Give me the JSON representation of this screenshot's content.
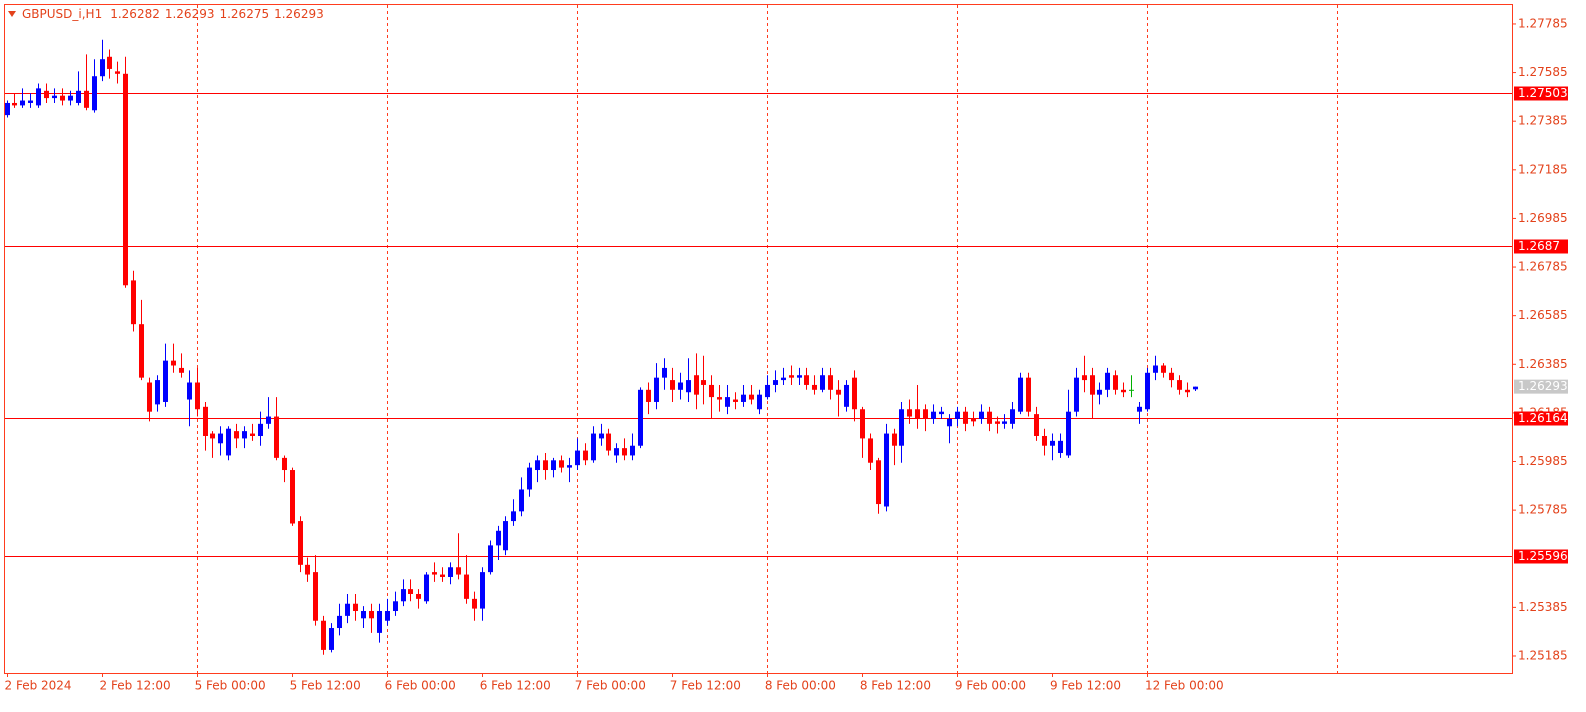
{
  "chart_data": {
    "type": "candlestick",
    "title": "GBPUSD_i,H1",
    "categories": [
      "2 Feb 2024",
      null,
      null,
      null,
      null,
      null,
      null,
      null,
      null,
      null,
      null,
      null,
      "2 Feb 12:00",
      null,
      null,
      null,
      null,
      null,
      null,
      null,
      null,
      null,
      null,
      null,
      "5 Feb 00:00",
      null,
      null,
      null,
      null,
      null,
      null,
      null,
      null,
      null,
      null,
      null,
      "5 Feb 12:00",
      null,
      null,
      null,
      null,
      null,
      null,
      null,
      null,
      null,
      null,
      null,
      "6 Feb 00:00",
      null,
      null,
      null,
      null,
      null,
      null,
      null,
      null,
      null,
      null,
      null,
      "6 Feb 12:00",
      null,
      null,
      null,
      null,
      null,
      null,
      null,
      null,
      null,
      null,
      null,
      "7 Feb 00:00",
      null,
      null,
      null,
      null,
      null,
      null,
      null,
      null,
      null,
      null,
      null,
      "7 Feb 12:00",
      null,
      null,
      null,
      null,
      null,
      null,
      null,
      null,
      null,
      null,
      null,
      "8 Feb 00:00",
      null,
      null,
      null,
      null,
      null,
      null,
      null,
      null,
      null,
      null,
      null,
      "8 Feb 12:00",
      null,
      null,
      null,
      null,
      null,
      null,
      null,
      null,
      null,
      null,
      null,
      "9 Feb 00:00",
      null,
      null,
      null,
      null,
      null,
      null,
      null,
      null,
      null,
      null,
      null,
      "9 Feb 12:00",
      null,
      null,
      null,
      null,
      null,
      null,
      null,
      null,
      null,
      null,
      null,
      "12 Feb 00:00",
      null,
      null,
      null,
      null,
      null,
      null
    ],
    "open": [
      1.2741,
      1.2746,
      1.2745,
      1.2746,
      1.2745,
      1.2751,
      1.2748,
      1.2749,
      1.2747,
      1.2746,
      1.2751,
      1.2743,
      1.2757,
      1.2765,
      1.2759,
      1.2758,
      1.2673,
      1.2655,
      1.2631,
      1.2622,
      1.2623,
      1.264,
      1.2637,
      1.2624,
      1.2631,
      1.2621,
      1.261,
      1.2606,
      1.2601,
      1.2611,
      1.2608,
      1.261,
      1.2609,
      1.2614,
      1.2617,
      1.26,
      1.2595,
      1.2574,
      1.2556,
      1.2553,
      1.2533,
      1.2521,
      1.253,
      1.2535,
      1.254,
      1.2534,
      1.2537,
      1.2528,
      1.2533,
      1.2537,
      1.2541,
      1.2546,
      1.2544,
      1.2541,
      1.2553,
      1.2552,
      1.2551,
      1.2555,
      1.2552,
      1.2542,
      1.2538,
      1.2553,
      1.2564,
      1.2562,
      1.2574,
      1.2578,
      1.2587,
      1.2595,
      1.2599,
      1.2595,
      1.2599,
      1.2596,
      1.2597,
      1.2603,
      1.2599,
      1.2608,
      1.261,
      1.2601,
      1.2604,
      1.2601,
      1.2605,
      1.2628,
      1.2623,
      1.2633,
      1.2632,
      1.2628,
      1.2627,
      1.2634,
      1.2632,
      1.263,
      1.2625,
      1.2621,
      1.2624,
      1.2623,
      1.2626,
      1.262,
      1.2625,
      1.263,
      1.2632,
      1.2634,
      1.2633,
      1.2634,
      1.263,
      1.2628,
      1.2634,
      1.2628,
      1.2621,
      1.2633,
      1.262,
      1.2608,
      1.2599,
      1.258,
      1.261,
      1.2605,
      1.262,
      1.262,
      1.262,
      1.2616,
      1.2618,
      1.2613,
      1.2616,
      1.2619,
      1.2616,
      1.2616,
      1.2619,
      1.2615,
      1.2614,
      1.2614,
      1.2619,
      1.2633,
      1.2618,
      1.2609,
      1.2605,
      1.2602,
      1.2601,
      1.2619,
      1.2634,
      1.2634,
      1.2626,
      1.2628,
      1.2634,
      1.2628,
      1.2628,
      1.2619,
      1.262,
      1.2635,
      1.2638,
      1.2635,
      1.2632,
      1.2628,
      1.26282
    ],
    "high": [
      1.2747,
      1.275,
      1.2752,
      1.275,
      1.2754,
      1.2754,
      1.2752,
      1.2752,
      1.2751,
      1.2759,
      1.2766,
      1.2764,
      1.2772,
      1.2768,
      1.2763,
      1.2765,
      1.2677,
      1.2665,
      1.2633,
      1.2634,
      1.2647,
      1.2647,
      1.2643,
      1.2636,
      1.2637,
      1.2623,
      1.2611,
      1.2613,
      1.2613,
      1.2614,
      1.2613,
      1.2614,
      1.2619,
      1.2625,
      1.2625,
      1.2601,
      1.2596,
      1.2576,
      1.2559,
      1.256,
      1.2535,
      1.2532,
      1.254,
      1.2544,
      1.2544,
      1.2539,
      1.254,
      1.254,
      1.2542,
      1.2545,
      1.255,
      1.255,
      1.2546,
      1.2553,
      1.2557,
      1.2555,
      1.2557,
      1.2569,
      1.256,
      1.2545,
      1.2555,
      1.2566,
      1.2572,
      1.2576,
      1.2583,
      1.2592,
      1.2598,
      1.2601,
      1.2602,
      1.26,
      1.2601,
      1.26,
      1.2608,
      1.2606,
      1.2613,
      1.2614,
      1.2612,
      1.2606,
      1.2608,
      1.261,
      1.2629,
      1.2631,
      1.2639,
      1.2641,
      1.2637,
      1.2635,
      1.2641,
      1.2643,
      1.2642,
      1.2634,
      1.263,
      1.263,
      1.2627,
      1.263,
      1.263,
      1.2628,
      1.2634,
      1.2636,
      1.2637,
      1.2638,
      1.2637,
      1.2637,
      1.2634,
      1.2637,
      1.2637,
      1.2632,
      1.2632,
      1.2636,
      1.2621,
      1.261,
      1.26,
      1.2614,
      1.2612,
      1.2623,
      1.2624,
      1.263,
      1.2622,
      1.2622,
      1.2621,
      1.2618,
      1.2621,
      1.2621,
      1.2619,
      1.2622,
      1.2621,
      1.2617,
      1.2618,
      1.2623,
      1.2635,
      1.2635,
      1.2621,
      1.2612,
      1.261,
      1.261,
      1.2628,
      1.2637,
      1.2642,
      1.2637,
      1.2631,
      1.2637,
      1.2636,
      1.2631,
      1.2634,
      1.2623,
      1.2637,
      1.2642,
      1.2639,
      1.2637,
      1.2634,
      1.2631,
      1.26293
    ],
    "low": [
      1.274,
      1.2744,
      1.2744,
      1.2744,
      1.2744,
      1.2746,
      1.2746,
      1.2745,
      1.2745,
      1.2745,
      1.2743,
      1.2742,
      1.2755,
      1.2756,
      1.2754,
      1.267,
      1.2652,
      1.2632,
      1.2615,
      1.2619,
      1.2621,
      1.2635,
      1.2633,
      1.2613,
      1.2617,
      1.2603,
      1.26,
      1.2601,
      1.2599,
      1.2604,
      1.2604,
      1.2607,
      1.2605,
      1.2612,
      1.2599,
      1.259,
      1.2572,
      1.2553,
      1.2549,
      1.2531,
      1.2519,
      1.252,
      1.2527,
      1.2532,
      1.2533,
      1.253,
      1.2528,
      1.2524,
      1.2531,
      1.2535,
      1.2539,
      1.2541,
      1.2538,
      1.254,
      1.2549,
      1.2549,
      1.2548,
      1.255,
      1.254,
      1.2533,
      1.2533,
      1.2552,
      1.2558,
      1.256,
      1.2572,
      1.2576,
      1.2584,
      1.259,
      1.2591,
      1.2592,
      1.2594,
      1.259,
      1.2595,
      1.2597,
      1.2598,
      1.2605,
      1.2601,
      1.2598,
      1.2599,
      1.2599,
      1.2604,
      1.2618,
      1.262,
      1.2628,
      1.2623,
      1.2624,
      1.2623,
      1.262,
      1.2622,
      1.2616,
      1.2619,
      1.2618,
      1.262,
      1.2621,
      1.2622,
      1.2618,
      1.2624,
      1.2627,
      1.263,
      1.263,
      1.263,
      1.2628,
      1.2626,
      1.2627,
      1.2624,
      1.2617,
      1.2619,
      1.2615,
      1.26,
      1.2595,
      1.2577,
      1.2578,
      1.2597,
      1.2598,
      1.2614,
      1.2612,
      1.2611,
      1.2614,
      1.2616,
      1.2606,
      1.2613,
      1.2611,
      1.2613,
      1.2614,
      1.2611,
      1.261,
      1.2612,
      1.2612,
      1.2618,
      1.2617,
      1.2607,
      1.2601,
      1.2599,
      1.26,
      1.26,
      1.2617,
      1.2627,
      1.2616,
      1.2622,
      1.2625,
      1.2626,
      1.2625,
      1.2625,
      1.2614,
      1.2619,
      1.2632,
      1.2633,
      1.2629,
      1.2626,
      1.2625,
      1.26275
    ],
    "close": [
      1.2746,
      1.2745,
      1.2747,
      1.2747,
      1.2752,
      1.2748,
      1.2749,
      1.2747,
      1.2749,
      1.2751,
      1.2744,
      1.2757,
      1.2764,
      1.276,
      1.2758,
      1.2671,
      1.2655,
      1.2633,
      1.2619,
      1.2632,
      1.264,
      1.2638,
      1.2635,
      1.2631,
      1.262,
      1.2609,
      1.2608,
      1.261,
      1.2612,
      1.2608,
      1.2611,
      1.2609,
      1.2614,
      1.2617,
      1.26,
      1.2595,
      1.2573,
      1.2556,
      1.2552,
      1.2533,
      1.2521,
      1.253,
      1.2535,
      1.254,
      1.2537,
      1.2537,
      1.2534,
      1.2537,
      1.2537,
      1.2541,
      1.2546,
      1.2544,
      1.2542,
      1.2552,
      1.2552,
      1.2551,
      1.2555,
      1.2552,
      1.2542,
      1.2538,
      1.2553,
      1.2564,
      1.257,
      1.2574,
      1.2578,
      1.2587,
      1.2596,
      1.2599,
      1.2595,
      1.2599,
      1.2596,
      1.2597,
      1.2603,
      1.2599,
      1.261,
      1.261,
      1.2603,
      1.2604,
      1.2601,
      1.2605,
      1.2628,
      1.2623,
      1.2633,
      1.2637,
      1.2628,
      1.2631,
      1.2632,
      1.2626,
      1.263,
      1.2625,
      1.2624,
      1.2625,
      1.2623,
      1.2626,
      1.2624,
      1.2626,
      1.263,
      1.2632,
      1.2633,
      1.2633,
      1.2634,
      1.263,
      1.2628,
      1.2634,
      1.2628,
      1.2626,
      1.263,
      1.262,
      1.2608,
      1.2598,
      1.2581,
      1.261,
      1.2605,
      1.262,
      1.2617,
      1.2616,
      1.2616,
      1.2619,
      1.2619,
      1.2616,
      1.2619,
      1.2614,
      1.2615,
      1.2619,
      1.2614,
      1.2614,
      1.2615,
      1.262,
      1.2633,
      1.2619,
      1.2609,
      1.2605,
      1.2607,
      1.2607,
      1.2619,
      1.2633,
      1.2632,
      1.2626,
      1.2628,
      1.2635,
      1.2628,
      1.2627,
      1.2628,
      1.2621,
      1.2635,
      1.2638,
      1.2635,
      1.2632,
      1.2628,
      1.2627,
      1.26293
    ],
    "up_color": "#0000ff",
    "down_color": "#ff0000",
    "doji_color": "#00b000",
    "ylim": [
      1.25115,
      1.27863
    ],
    "yticks": [
      1.27785,
      1.27585,
      1.27385,
      1.27185,
      1.26985,
      1.26785,
      1.26585,
      1.26385,
      1.26185,
      1.25985,
      1.25785,
      1.25385,
      1.25185
    ],
    "levels": [
      1.27503,
      1.2687,
      1.26164,
      1.25596
    ],
    "level_color": "#ff0000",
    "grid": true,
    "grid_color": "#ff3c1e"
  }
}
